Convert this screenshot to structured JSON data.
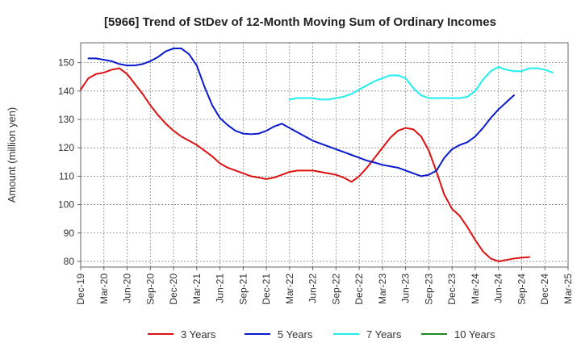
{
  "chart_data": {
    "type": "line",
    "title": "[5966]  Trend of StDev of 12-Month Moving Sum of Ordinary Incomes",
    "xlabel": "",
    "ylabel": "Amount (million yen)",
    "ylim": [
      78,
      157
    ],
    "yticks": [
      80,
      90,
      100,
      110,
      120,
      130,
      140,
      150
    ],
    "xtick_labels": [
      "Dec-19",
      "Mar-20",
      "Jun-20",
      "Sep-20",
      "Dec-20",
      "Mar-21",
      "Jun-21",
      "Sep-21",
      "Dec-21",
      "Mar-22",
      "Jun-22",
      "Sep-22",
      "Dec-22",
      "Mar-23",
      "Jun-23",
      "Sep-23",
      "Dec-23",
      "Mar-24",
      "Jun-24",
      "Sep-24",
      "Dec-24",
      "Mar-25"
    ],
    "grid": true,
    "legend_position": "bottom",
    "series": [
      {
        "name": "3 Years",
        "color": "#dd1111",
        "start_month_index": 0,
        "values": [
          140.5,
          144.5,
          146,
          146.5,
          147.5,
          148,
          146,
          142.5,
          139,
          135,
          131.5,
          128.5,
          126,
          124,
          122.5,
          121,
          119,
          117,
          114.5,
          113,
          112,
          111,
          110,
          109.5,
          109,
          109.5,
          110.5,
          111.5,
          112,
          112,
          112,
          111.5,
          111,
          110.5,
          109.5,
          108,
          110,
          113,
          116.5,
          120,
          123.5,
          126,
          127,
          126.5,
          124,
          119,
          111.5,
          103.5,
          98.5,
          96,
          92,
          87.5,
          83.5,
          81,
          80,
          80.5,
          81,
          81.3,
          81.5
        ]
      },
      {
        "name": "5 Years",
        "color": "#0a1acc",
        "start_month_index": 1,
        "values": [
          151.5,
          151.5,
          151,
          150.5,
          149.5,
          149,
          149,
          149.5,
          150.5,
          152,
          154,
          155,
          155,
          153,
          149,
          141.5,
          135,
          130.5,
          128,
          126,
          125,
          124.8,
          125,
          126,
          127.5,
          128.5,
          127,
          125.5,
          124,
          122.5,
          121.5,
          120.5,
          119.5,
          118.5,
          117.5,
          116.5,
          115.5,
          114.8,
          114,
          113.5,
          113,
          112,
          111,
          110,
          110.5,
          112,
          116.5,
          119.5,
          121,
          122,
          124,
          127,
          130.5,
          133.5,
          136,
          138.5
        ]
      },
      {
        "name": "7 Years",
        "color": "#22eeee",
        "start_month_index": 27,
        "values": [
          137,
          137.5,
          137.5,
          137.5,
          137,
          137,
          137.5,
          138,
          139,
          140.5,
          142,
          143.5,
          144.5,
          145.5,
          145.5,
          144.5,
          141,
          138.5,
          137.5,
          137.5,
          137.5,
          137.5,
          137.5,
          138,
          140,
          144,
          147,
          148.5,
          147.5,
          147,
          147,
          148,
          148,
          147.5,
          146.5
        ]
      },
      {
        "name": "10 Years",
        "color": "#228822",
        "start_month_index": 0,
        "values": []
      }
    ]
  }
}
